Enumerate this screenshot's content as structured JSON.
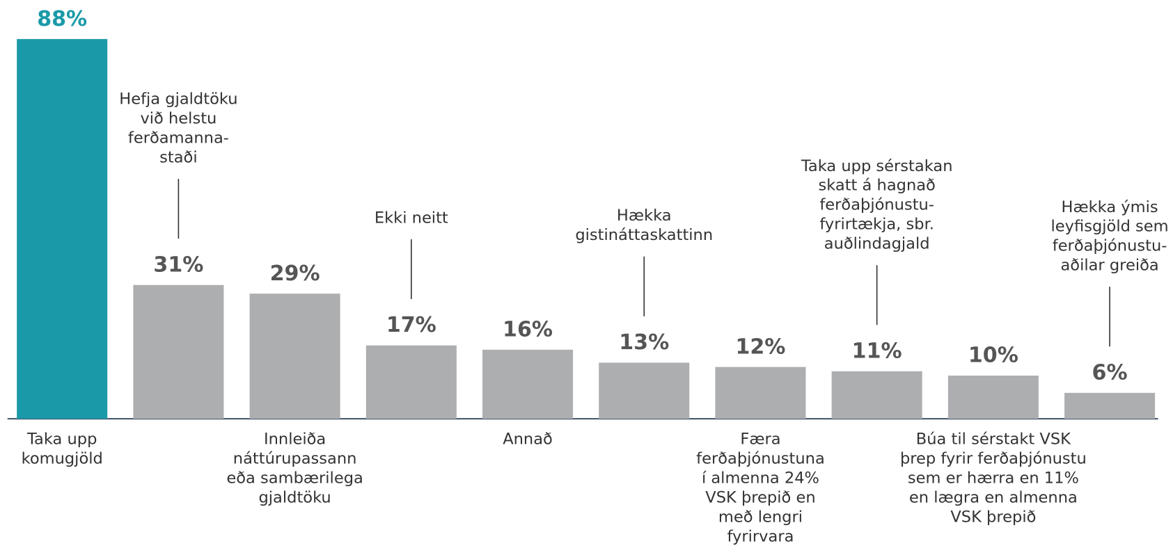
{
  "chart_data": {
    "type": "bar",
    "categories": [
      "Taka upp\nkomugjöld",
      "Hefja gjaldtöku\nvið helstu\nferðamanna-\nstaði",
      "Innleiða\nnáttúrupassann\neða sambærilega\ngjaldtöku",
      "Ekki neitt",
      "Annað",
      "Hækka\ngistináttaskattinn",
      "Færa\nferðaþjónustuna\ní almenna 24%\nVSK þrepið en\nmeð lengri\nfyrirvara",
      "Taka upp sérstakan\nskatt á hagnað\nferðaþjónustu-\nfyrirtækja, sbr.\nauðlindagjald",
      "Búa til sérstakt VSK\nþrep fyrir ferðaþjónustu\nsem er hærra en 11%\nen lægra en almenna\nVSK þrepið",
      "Hækka ýmis\nleyfisgjöld sem\nferðaþjónustu-\naðilar greiða"
    ],
    "values": [
      88,
      31,
      29,
      17,
      16,
      13,
      12,
      11,
      10,
      6
    ],
    "value_labels": [
      "88%",
      "31%",
      "29%",
      "17%",
      "16%",
      "13%",
      "12%",
      "11%",
      "10%",
      "6%"
    ],
    "colors": [
      "#1a9aa8",
      "#adaeb0",
      "#adaeb0",
      "#adaeb0",
      "#adaeb0",
      "#adaeb0",
      "#adaeb0",
      "#adaeb0",
      "#adaeb0",
      "#adaeb0"
    ],
    "ylim": [
      0,
      88
    ]
  }
}
